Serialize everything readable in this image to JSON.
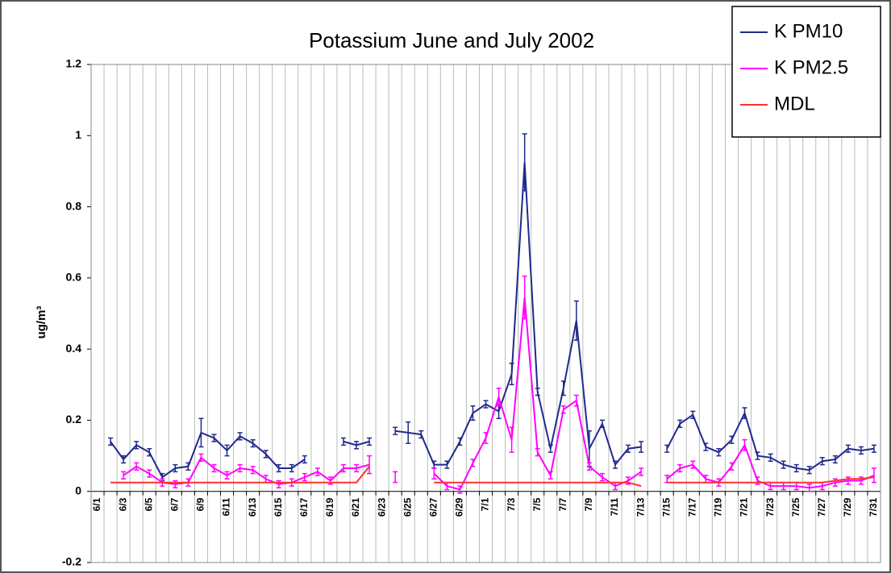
{
  "chart_data": {
    "type": "line",
    "title": "Potassium June and July 2002",
    "y_label": "ug/m³",
    "categories": [
      "6/1",
      null,
      "6/3",
      null,
      "6/5",
      null,
      "6/7",
      null,
      "6/9",
      null,
      "6/11",
      null,
      "6/13",
      null,
      "6/15",
      null,
      "6/17",
      null,
      "6/19",
      null,
      "6/21",
      null,
      "6/23",
      null,
      "6/25",
      null,
      "6/27",
      null,
      "6/29",
      null,
      "7/1",
      null,
      "7/3",
      null,
      "7/5",
      null,
      "7/7",
      null,
      "7/9",
      null,
      "7/11",
      null,
      "7/13",
      null,
      "7/15",
      null,
      "7/17",
      null,
      "7/19",
      null,
      "7/21",
      null,
      "7/23",
      null,
      "7/25",
      null,
      "7/27",
      null,
      "7/29",
      null,
      "7/31"
    ],
    "ylim": [
      -0.2,
      1.2
    ],
    "yticks": [
      -0.2,
      0,
      0.2,
      0.4,
      0.6,
      0.8,
      1,
      1.2
    ],
    "grid": true,
    "legend": "top-right",
    "series": [
      {
        "name": "K PM10",
        "color": "#1f2a8c",
        "values": [
          null,
          0.14,
          0.09,
          0.13,
          0.11,
          0.04,
          0.065,
          0.07,
          0.165,
          0.15,
          0.115,
          0.155,
          0.135,
          0.105,
          0.065,
          0.065,
          0.09,
          null,
          null,
          0.14,
          0.13,
          0.14,
          null,
          0.17,
          0.165,
          0.16,
          0.075,
          0.075,
          0.14,
          0.22,
          0.245,
          0.225,
          0.33,
          0.925,
          0.28,
          0.12,
          0.29,
          0.48,
          0.12,
          0.19,
          0.075,
          0.12,
          0.125,
          null,
          0.12,
          0.19,
          0.215,
          0.125,
          0.11,
          0.145,
          0.22,
          0.1,
          0.095,
          0.075,
          0.065,
          0.06,
          0.085,
          0.09,
          0.12,
          0.115,
          0.12
        ],
        "errors": [
          null,
          0.01,
          0.01,
          0.01,
          0.01,
          0.01,
          0.01,
          0.01,
          0.04,
          0.01,
          0.015,
          0.01,
          0.01,
          0.01,
          0.01,
          0.01,
          0.01,
          null,
          null,
          0.01,
          0.01,
          0.01,
          null,
          0.01,
          0.03,
          0.01,
          0.01,
          0.01,
          0.01,
          0.02,
          0.01,
          0.02,
          0.03,
          0.08,
          0.01,
          0.01,
          0.02,
          0.055,
          0.05,
          0.01,
          0.01,
          0.01,
          0.015,
          null,
          0.01,
          0.01,
          0.01,
          0.01,
          0.01,
          0.01,
          0.015,
          0.01,
          0.01,
          0.01,
          0.01,
          0.01,
          0.01,
          0.01,
          0.01,
          0.01,
          0.01
        ]
      },
      {
        "name": "K PM2.5",
        "color": "#ff00ff",
        "values": [
          null,
          null,
          0.045,
          0.07,
          0.05,
          0.025,
          0.02,
          0.025,
          0.095,
          0.065,
          0.045,
          0.065,
          0.06,
          0.035,
          0.02,
          0.025,
          0.04,
          0.055,
          0.03,
          0.065,
          0.065,
          0.075,
          null,
          0.04,
          null,
          null,
          0.05,
          0.015,
          0.005,
          0.08,
          0.15,
          0.265,
          0.145,
          0.545,
          0.11,
          0.045,
          0.23,
          0.255,
          0.07,
          0.04,
          0.015,
          0.03,
          0.055,
          null,
          0.035,
          0.065,
          0.075,
          0.035,
          0.025,
          0.07,
          0.13,
          0.03,
          0.015,
          0.015,
          0.015,
          0.01,
          0.015,
          0.025,
          0.03,
          0.03,
          0.045
        ],
        "errors": [
          null,
          null,
          0.01,
          0.01,
          0.01,
          0.01,
          0.01,
          0.01,
          0.01,
          0.01,
          0.01,
          0.01,
          0.01,
          0.01,
          0.01,
          0.01,
          0.01,
          0.01,
          0.01,
          0.01,
          0.01,
          0.025,
          null,
          0.015,
          null,
          null,
          0.015,
          0.01,
          0.01,
          0.01,
          0.015,
          0.025,
          0.035,
          0.06,
          0.01,
          0.01,
          0.01,
          0.015,
          0.01,
          0.01,
          0.01,
          0.01,
          0.01,
          null,
          0.01,
          0.01,
          0.01,
          0.01,
          0.01,
          0.01,
          0.015,
          0.01,
          0.01,
          0.01,
          0.01,
          0.01,
          0.01,
          0.01,
          0.01,
          0.01,
          0.02
        ]
      },
      {
        "name": "MDL",
        "color": "#ff3030",
        "values": [
          null,
          0.025,
          0.025,
          0.025,
          0.025,
          0.025,
          0.025,
          0.025,
          0.025,
          0.025,
          0.025,
          0.025,
          0.025,
          0.025,
          0.025,
          0.025,
          0.025,
          0.025,
          0.025,
          0.025,
          0.025,
          0.07,
          null,
          null,
          null,
          null,
          0.025,
          0.025,
          0.025,
          0.025,
          0.025,
          0.025,
          0.025,
          0.025,
          0.025,
          0.025,
          0.025,
          0.025,
          0.025,
          0.025,
          0.025,
          0.025,
          0.015,
          null,
          0.025,
          0.025,
          0.025,
          0.025,
          0.025,
          0.025,
          0.025,
          0.025,
          0.025,
          0.025,
          0.025,
          0.025,
          0.025,
          0.03,
          0.035,
          0.035,
          0.04
        ]
      }
    ]
  }
}
